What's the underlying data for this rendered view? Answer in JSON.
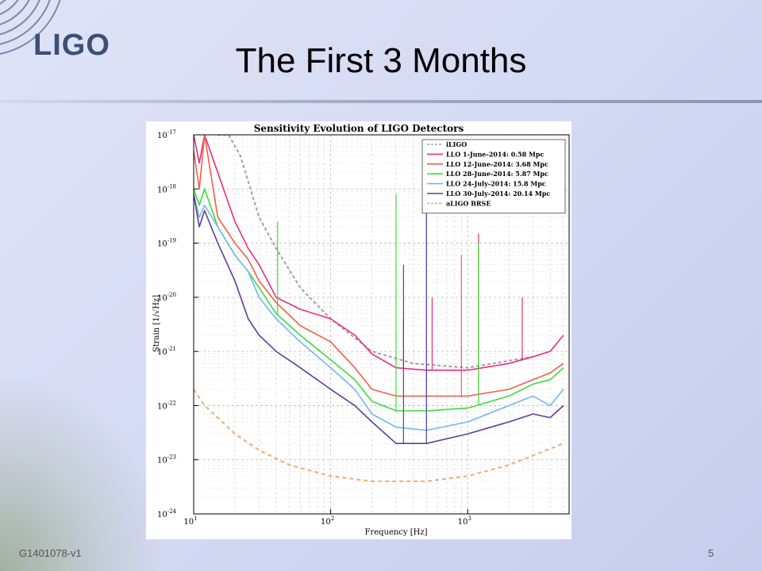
{
  "slide": {
    "logo_text": "LIGO",
    "title": "The First 3 Months",
    "footer_id": "G1401078-v1",
    "page_number": "5"
  },
  "chart_data": {
    "type": "line",
    "title": "Sensitivity Evolution of LIGO Detectors",
    "xlabel": "Frequency [Hz]",
    "ylabel": "Strain [1/√Hz]",
    "xscale": "log",
    "yscale": "log",
    "xlim": [
      10,
      5500
    ],
    "ylim": [
      1e-24,
      1e-17
    ],
    "grid": true,
    "legend_position": "top-right",
    "x_ticks": [
      {
        "value": 10,
        "base": "10",
        "exp": "1"
      },
      {
        "value": 100,
        "base": "10",
        "exp": "2"
      },
      {
        "value": 1000,
        "base": "10",
        "exp": "3"
      }
    ],
    "y_ticks": [
      {
        "value": 1e-17,
        "base": "10",
        "exp": "-17"
      },
      {
        "value": 1e-18,
        "base": "10",
        "exp": "-18"
      },
      {
        "value": 1e-19,
        "base": "10",
        "exp": "-19"
      },
      {
        "value": 1e-20,
        "base": "10",
        "exp": "-20"
      },
      {
        "value": 1e-21,
        "base": "10",
        "exp": "-21"
      },
      {
        "value": 1e-22,
        "base": "10",
        "exp": "-22"
      },
      {
        "value": 1e-23,
        "base": "10",
        "exp": "-23"
      },
      {
        "value": 1e-24,
        "base": "10",
        "exp": "-24"
      }
    ],
    "series": [
      {
        "name": "iLIGO",
        "color": "#a0a0a0",
        "dash": "4,3",
        "x": [
          15,
          18,
          22,
          30,
          40,
          60,
          100,
          200,
          400,
          1000,
          3000
        ],
        "y": [
          1e-17,
          1e-17,
          4e-18,
          3e-19,
          8e-20,
          1.5e-20,
          4e-21,
          1e-21,
          6e-22,
          5e-22,
          8e-22
        ]
      },
      {
        "name": "LLO  1-June-2014:  0.58 Mpc",
        "color": "#e8307a",
        "dash": "",
        "x": [
          10,
          11,
          12,
          15,
          20,
          25,
          30,
          40,
          60,
          100,
          150,
          200,
          300,
          500,
          1000,
          2000,
          3000,
          4000,
          5000
        ],
        "y": [
          1e-17,
          3e-18,
          1e-17,
          2e-18,
          2.5e-19,
          8e-20,
          4e-20,
          1e-20,
          6e-21,
          4e-21,
          2e-21,
          9e-22,
          5e-22,
          4.5e-22,
          4.5e-22,
          6e-22,
          8e-22,
          1e-21,
          2e-21
        ],
        "spikes": [
          {
            "x": 1200,
            "y": 1.5e-19
          },
          {
            "x": 340,
            "y": 4e-21
          },
          {
            "x": 2500,
            "y": 1e-20
          },
          {
            "x": 550,
            "y": 1e-20
          }
        ]
      },
      {
        "name": "LLO 12-June-2014:  3.68 Mpc",
        "color": "#f0604a",
        "dash": "",
        "x": [
          10,
          11,
          12,
          15,
          20,
          25,
          30,
          40,
          60,
          100,
          150,
          200,
          300,
          500,
          1000,
          2000,
          3000,
          4000,
          5000
        ],
        "y": [
          5e-18,
          1e-18,
          1e-17,
          3e-19,
          1e-19,
          5e-20,
          2e-20,
          8e-21,
          3e-21,
          1.5e-21,
          5e-22,
          2e-22,
          1.5e-22,
          1.5e-22,
          1.5e-22,
          2e-22,
          3e-22,
          4e-22,
          6e-22
        ],
        "spikes": [
          {
            "x": 1200,
            "y": 1e-19
          },
          {
            "x": 900,
            "y": 6e-20
          }
        ]
      },
      {
        "name": "LLO 28-June-2014:  5.87 Mpc",
        "color": "#3ddc3d",
        "dash": "",
        "x": [
          10,
          11,
          12,
          15,
          20,
          25,
          30,
          40,
          60,
          100,
          150,
          200,
          300,
          500,
          1000,
          2000,
          3000,
          4000,
          5000
        ],
        "y": [
          1e-18,
          5e-19,
          1e-18,
          2e-19,
          6e-20,
          3e-20,
          1.5e-20,
          5e-21,
          2e-21,
          7e-22,
          3e-22,
          1.2e-22,
          8e-23,
          8e-23,
          9e-23,
          1.5e-22,
          2.5e-22,
          3e-22,
          5e-22
        ],
        "spikes": [
          {
            "x": 41,
            "y": 2.5e-19
          },
          {
            "x": 300,
            "y": 8e-19
          },
          {
            "x": 1200,
            "y": 1e-19
          }
        ]
      },
      {
        "name": "LLO 24-July-2014:  15.8 Mpc",
        "color": "#70b8f0",
        "dash": "",
        "x": [
          10,
          11,
          12,
          15,
          20,
          25,
          30,
          40,
          60,
          100,
          150,
          200,
          300,
          500,
          1000,
          2000,
          3000,
          4000,
          5000
        ],
        "y": [
          8e-19,
          3e-19,
          5e-19,
          2e-19,
          6e-20,
          3e-20,
          1e-20,
          4e-21,
          1.5e-21,
          5e-22,
          2e-22,
          7e-23,
          4e-23,
          3.5e-23,
          5e-23,
          1e-22,
          1.5e-22,
          1e-22,
          2e-22
        ],
        "spikes": [
          {
            "x": 500,
            "y": 2e-18
          }
        ]
      },
      {
        "name": "LLO 30-July-2014:  20.14 Mpc",
        "color": "#5a3f9a",
        "dash": "",
        "x": [
          10,
          11,
          12,
          15,
          20,
          25,
          30,
          40,
          60,
          100,
          150,
          200,
          300,
          500,
          1000,
          2000,
          3000,
          4000,
          5000
        ],
        "y": [
          8e-19,
          2e-19,
          4e-19,
          1e-19,
          2e-20,
          4e-21,
          2e-21,
          1e-21,
          5e-22,
          2e-22,
          1e-22,
          5e-23,
          2e-23,
          2e-23,
          3e-23,
          5e-23,
          7e-23,
          6e-23,
          1e-22
        ],
        "spikes": [
          {
            "x": 500,
            "y": 2e-18
          },
          {
            "x": 340,
            "y": 4e-20
          }
        ]
      },
      {
        "name": "aLIGO BRSE",
        "color": "#e8b070",
        "dash": "5,4",
        "x": [
          10,
          12,
          15,
          20,
          30,
          50,
          100,
          200,
          300,
          500,
          1000,
          2000,
          3000,
          5000
        ],
        "y": [
          2e-22,
          1e-22,
          6e-23,
          3e-23,
          1.5e-23,
          8e-24,
          5e-24,
          4e-24,
          4e-24,
          4e-24,
          5e-24,
          8e-24,
          1.2e-23,
          2e-23
        ]
      }
    ]
  }
}
